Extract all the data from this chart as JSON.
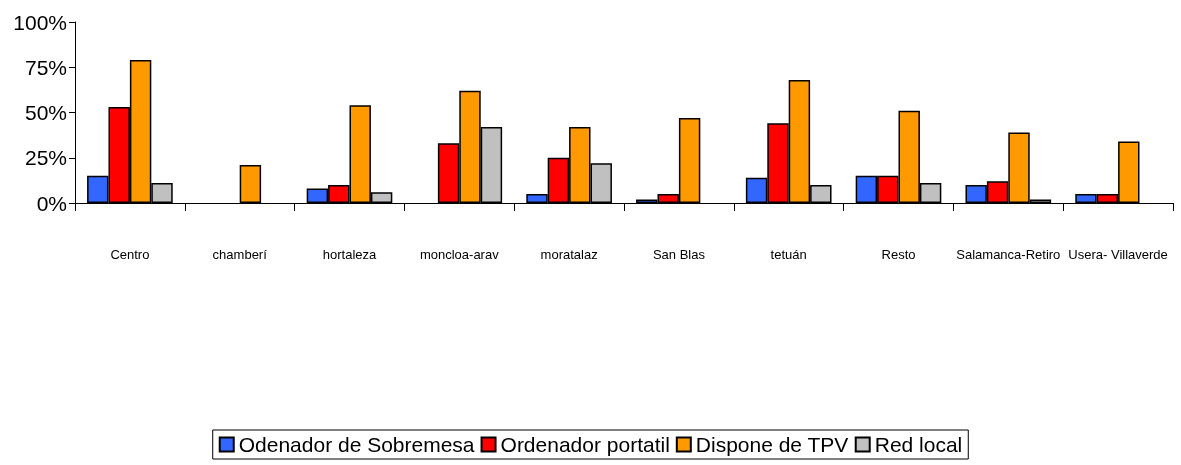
{
  "chart_data": {
    "type": "bar",
    "categories": [
      "Centro",
      "chamberí",
      "hortaleza",
      "moncloa-arav",
      "moratalaz",
      "San Blas",
      "tetuán",
      "Resto",
      "Salamanca-Retiro",
      "Usera- Villaverde"
    ],
    "series": [
      {
        "name": "Odenador de Sobremesa",
        "color": "#3366ff",
        "values": [
          15,
          null,
          8,
          null,
          5,
          2,
          14,
          15,
          10,
          5
        ]
      },
      {
        "name": "Ordenador portatil",
        "color": "#ff0000",
        "values": [
          53,
          null,
          10,
          33,
          25,
          5,
          44,
          15,
          12,
          5
        ]
      },
      {
        "name": "Dispone de TPV",
        "color": "#ff9900",
        "values": [
          79,
          21,
          54,
          62,
          42,
          47,
          68,
          51,
          39,
          34
        ]
      },
      {
        "name": "Red local",
        "color": "#c0c0c0",
        "values": [
          11,
          null,
          6,
          42,
          22,
          null,
          10,
          11,
          2,
          null
        ]
      }
    ],
    "ylim": [
      0,
      100
    ],
    "yticks": [
      {
        "value": 0,
        "label": "0%"
      },
      {
        "value": 25,
        "label": "25%"
      },
      {
        "value": 50,
        "label": "50%"
      },
      {
        "value": 75,
        "label": "75%"
      },
      {
        "value": 100,
        "label": "100%"
      }
    ],
    "grid": false,
    "legend": "bottom"
  }
}
